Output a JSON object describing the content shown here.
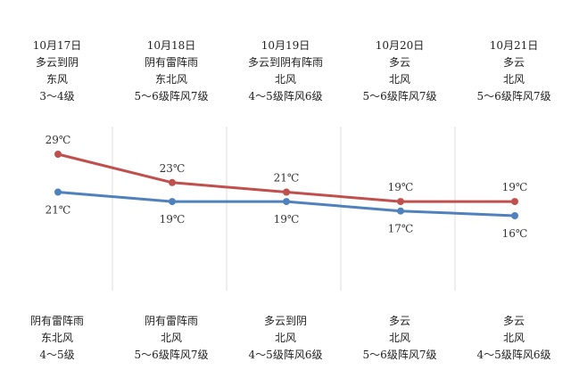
{
  "chart_data": {
    "type": "line",
    "x": [
      "10月17日",
      "10月18日",
      "10月19日",
      "10月20日",
      "10月21日"
    ],
    "series": [
      {
        "key": "high",
        "values": [
          29,
          23,
          21,
          19,
          19
        ],
        "labels": [
          "29℃",
          "23℃",
          "21℃",
          "19℃",
          "19℃"
        ],
        "color": "#c0504d"
      },
      {
        "key": "low",
        "values": [
          21,
          19,
          19,
          17,
          16
        ],
        "labels": [
          "21℃",
          "19℃",
          "19℃",
          "17℃",
          "16℃"
        ],
        "color": "#4f81bd"
      }
    ],
    "grid": "vertical"
  },
  "days": [
    {
      "date": "10月17日",
      "day_weather": "多云到阴",
      "day_wind_dir": "东风",
      "day_wind_level": "3～4级",
      "night_weather": "阴有雷阵雨",
      "night_wind_dir": "东北风",
      "night_wind_level": "4～5级"
    },
    {
      "date": "10月18日",
      "day_weather": "阴有雷阵雨",
      "day_wind_dir": "东北风",
      "day_wind_level": "5～6级阵风7级",
      "night_weather": "阴有雷阵雨",
      "night_wind_dir": "北风",
      "night_wind_level": "5～6级阵风7级"
    },
    {
      "date": "10月19日",
      "day_weather": "多云到阴有阵雨",
      "day_wind_dir": "北风",
      "day_wind_level": "4～5级阵风6级",
      "night_weather": "多云到阴",
      "night_wind_dir": "北风",
      "night_wind_level": "4～5级阵风6级"
    },
    {
      "date": "10月20日",
      "day_weather": "多云",
      "day_wind_dir": "北风",
      "day_wind_level": "5～6级阵风7级",
      "night_weather": "多云",
      "night_wind_dir": "北风",
      "night_wind_level": "5～6级阵风7级"
    },
    {
      "date": "10月21日",
      "day_weather": "多云",
      "day_wind_dir": "北风",
      "day_wind_level": "5～6级阵风7级",
      "night_weather": "多云",
      "night_wind_dir": "北风",
      "night_wind_level": "4～5级阵风6级"
    }
  ]
}
